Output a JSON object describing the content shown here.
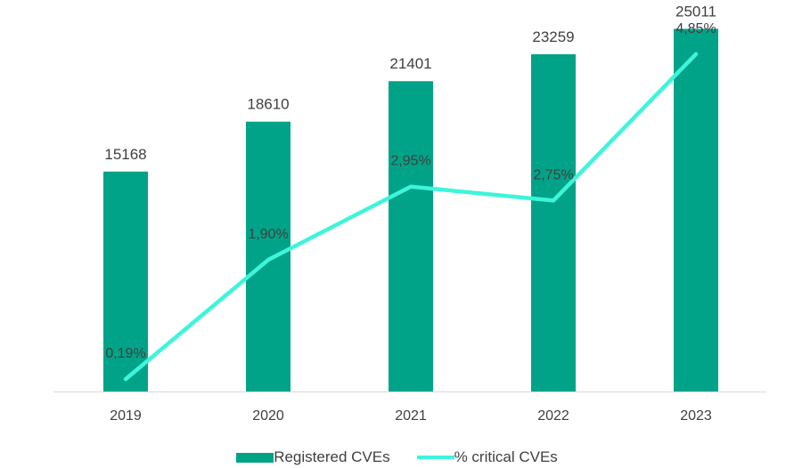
{
  "chart_data": {
    "type": "bar",
    "categories": [
      "2019",
      "2020",
      "2021",
      "2022",
      "2023"
    ],
    "series": [
      {
        "name": "Registered CVEs",
        "type": "bar",
        "values": [
          15168,
          18610,
          21401,
          23259,
          25011
        ],
        "labels": [
          "15168",
          "18610",
          "21401",
          "23259",
          "25011"
        ],
        "color": "#00A388"
      },
      {
        "name": "% critical CVEs",
        "type": "line",
        "values": [
          0.19,
          1.9,
          2.95,
          2.75,
          4.85
        ],
        "labels": [
          "0,19%",
          "1,90%",
          "2,95%",
          "2,75%",
          "4,85%"
        ],
        "color": "#3DF5DA"
      }
    ],
    "ylim_bar": [
      0,
      27000
    ],
    "ylim_line": [
      0,
      5
    ],
    "grid": false,
    "legend_position": "bottom"
  }
}
